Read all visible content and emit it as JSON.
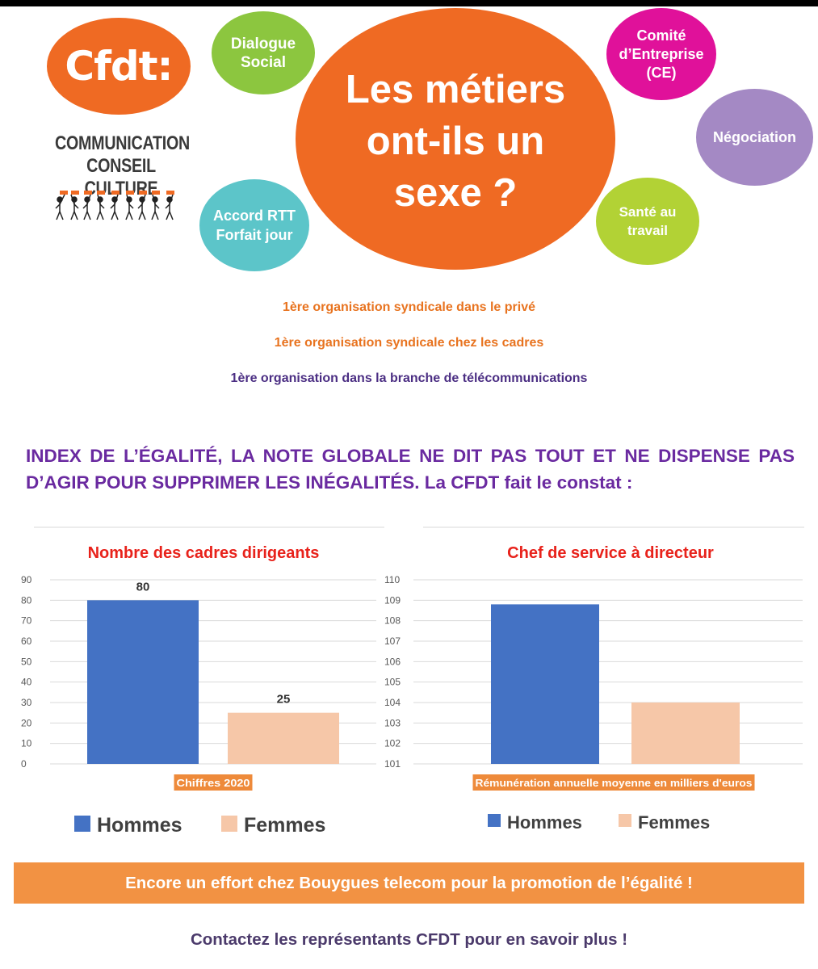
{
  "logo": {
    "brand": "Cfdt:",
    "line1": "COMMUNICATION",
    "line2": "CONSEIL CULTURE"
  },
  "bubbles": {
    "dialogue": "Dialogue\nSocial",
    "main": "Les métiers\nont-ils un\nsexe ?",
    "comite": "Comité\nd’Entreprise\n(CE)",
    "negociation": "Négociation",
    "accord": "Accord RTT\nForfait jour",
    "sante": "Santé au\ntravail"
  },
  "taglines": [
    "1ère organisation syndicale dans le privé",
    "1ère organisation syndicale chez les cadres",
    "1ère organisation dans la branche de télécommunications"
  ],
  "headline": "INDEX DE L’ÉGALITÉ, LA NOTE GLOBALE NE DIT PAS TOUT ET NE DISPENSE PAS D’AGIR POUR SUPPRIMER LES INÉGALITÉS. La CFDT fait le constat :",
  "colors": {
    "orange": "#ef6a23",
    "hommes": "#4472c4",
    "femmes": "#f6c7a8",
    "purple": "#6a2aa0",
    "title_red": "#e8221b",
    "label_bg": "#ee8a3a"
  },
  "chart_data": [
    {
      "type": "bar",
      "title": "Nombre des cadres dirigeants",
      "xlabel": "Chiffres 2020",
      "categories": [
        "Hommes",
        "Femmes"
      ],
      "values": [
        80,
        25
      ],
      "data_labels": [
        "80",
        "25"
      ],
      "yticks": [
        "0",
        "10",
        "20",
        "30",
        "40",
        "50",
        "60",
        "70",
        "80",
        "90"
      ],
      "ylim": [
        0,
        90
      ],
      "grid": true,
      "legend": [
        "Hommes",
        "Femmes"
      ],
      "legend_position": "bottom"
    },
    {
      "type": "bar",
      "title": "Chef de service à directeur",
      "xlabel": "Rémunération annuelle moyenne en milliers d'euros",
      "categories": [
        "Hommes",
        "Femmes"
      ],
      "values": [
        108.8,
        104
      ],
      "yticks": [
        "101",
        "102",
        "103",
        "104",
        "105",
        "106",
        "107",
        "108",
        "109",
        "110"
      ],
      "ylim": [
        101,
        110
      ],
      "grid": true,
      "legend": [
        "Hommes",
        "Femmes"
      ],
      "legend_position": "bottom"
    }
  ],
  "footer": {
    "effort": "Encore un effort chez Bouygues telecom pour la promotion de l’égalité !",
    "contact": "Contactez les représentants CFDT pour en savoir plus !"
  }
}
